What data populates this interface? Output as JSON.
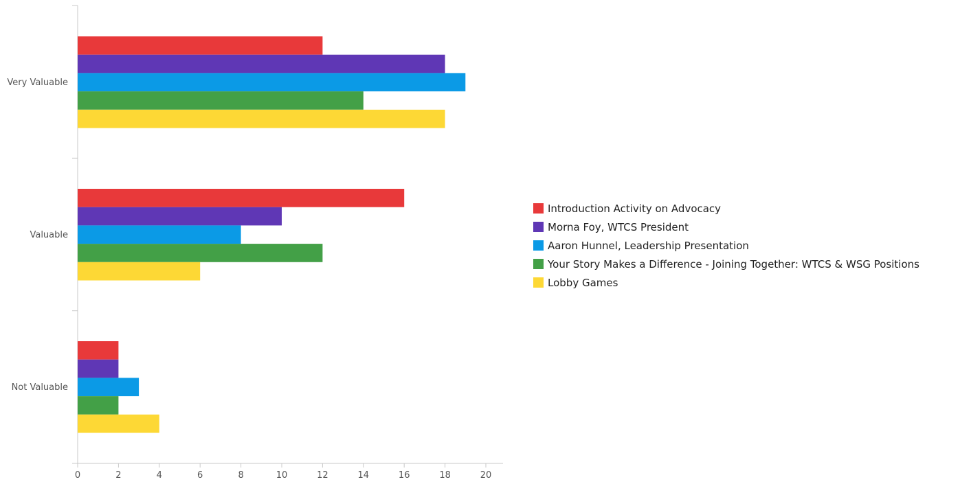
{
  "chart_data": {
    "type": "bar",
    "orientation": "horizontal",
    "categories": [
      "Very Valuable",
      "Valuable",
      "Not Valuable"
    ],
    "series": [
      {
        "name": "Introduction Activity on Advocacy",
        "color": "#E8393A",
        "values": [
          12,
          16,
          2
        ]
      },
      {
        "name": "Morna Foy, WTCS President",
        "color": "#5F37B5",
        "values": [
          18,
          10,
          2
        ]
      },
      {
        "name": "Aaron Hunnel, Leadership Presentation",
        "color": "#0B9AE6",
        "values": [
          19,
          8,
          3
        ]
      },
      {
        "name": "Your Story Makes a Difference - Joining Together: WTCS & WSG Positions",
        "color": "#43A047",
        "values": [
          14,
          12,
          2
        ]
      },
      {
        "name": "Lobby Games",
        "color": "#FDD835",
        "values": [
          18,
          6,
          4
        ]
      }
    ],
    "x_ticks": [
      0,
      2,
      4,
      6,
      8,
      10,
      12,
      14,
      16,
      18,
      20
    ],
    "xlim": [
      0,
      20
    ],
    "grid": false,
    "legend_position": "right"
  }
}
